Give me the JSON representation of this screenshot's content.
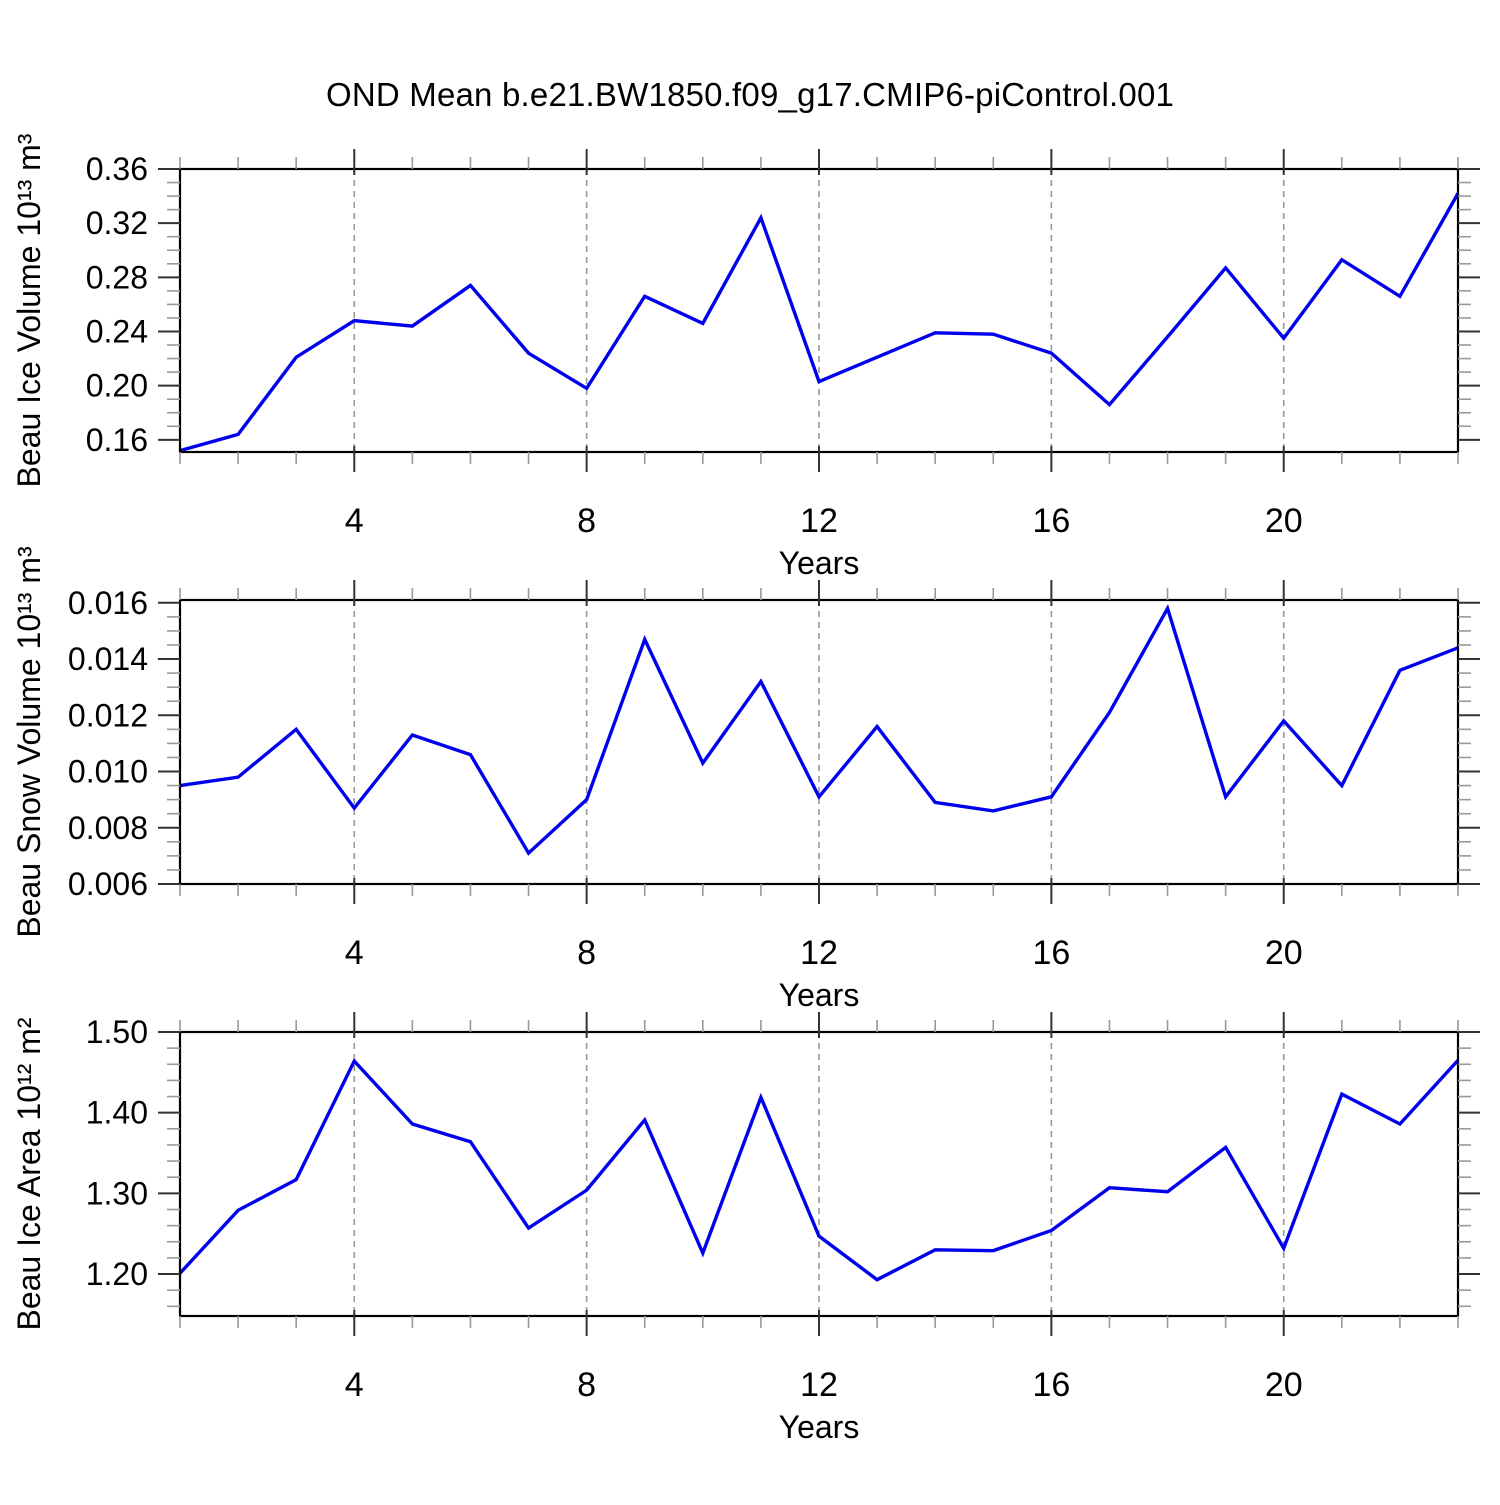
{
  "title": "OND Mean b.e21.BW1850.f09_g17.CMIP6-piControl.001",
  "style": {
    "line_color": "#0000ee",
    "axis_color": "#000000",
    "major_tick_color": "#333333",
    "minor_tick_color": "#999999",
    "grid_color": "#999999",
    "text_color": "#000000",
    "background": "#ffffff"
  },
  "chart_data": [
    {
      "type": "line",
      "name": "beau-ice-volume",
      "ylabel": "Beau Ice Volume 10¹³ m³",
      "xlabel": "Years",
      "x": [
        1,
        2,
        3,
        4,
        5,
        6,
        7,
        8,
        9,
        10,
        11,
        12,
        13,
        14,
        15,
        16,
        17,
        18,
        19,
        20,
        21,
        22,
        23
      ],
      "values": [
        0.152,
        0.164,
        0.221,
        0.248,
        0.244,
        0.274,
        0.224,
        0.198,
        0.266,
        0.246,
        0.324,
        0.203,
        0.221,
        0.239,
        0.238,
        0.224,
        0.186,
        0.236,
        0.287,
        0.235,
        0.293,
        0.266,
        0.342
      ],
      "xlim": [
        1,
        23
      ],
      "ylim": [
        0.151,
        0.36
      ],
      "xticks": [
        4,
        8,
        12,
        16,
        20
      ],
      "xtick_labels": [
        "4",
        "8",
        "12",
        "16",
        "20"
      ],
      "yticks": [
        0.16,
        0.2,
        0.24,
        0.28,
        0.32,
        0.36
      ],
      "ytick_labels": [
        "0.16",
        "0.20",
        "0.24",
        "0.28",
        "0.32",
        "0.36"
      ],
      "ytick_minor_step": 0.01,
      "xtick_minor_step": 1,
      "grid": "vertical-dashed",
      "legend": "none"
    },
    {
      "type": "line",
      "name": "beau-snow-volume",
      "ylabel": "Beau Snow Volume 10¹³ m³",
      "xlabel": "Years",
      "x": [
        1,
        2,
        3,
        4,
        5,
        6,
        7,
        8,
        9,
        10,
        11,
        12,
        13,
        14,
        15,
        16,
        17,
        18,
        19,
        20,
        21,
        22,
        23
      ],
      "values": [
        0.0095,
        0.0098,
        0.0115,
        0.0087,
        0.0113,
        0.0106,
        0.0071,
        0.009,
        0.0147,
        0.0103,
        0.0132,
        0.0091,
        0.0116,
        0.0089,
        0.0086,
        0.0091,
        0.0121,
        0.0158,
        0.0091,
        0.0118,
        0.0095,
        0.0136,
        0.0144
      ],
      "xlim": [
        1,
        23
      ],
      "ylim": [
        0.006,
        0.0161
      ],
      "xticks": [
        4,
        8,
        12,
        16,
        20
      ],
      "xtick_labels": [
        "4",
        "8",
        "12",
        "16",
        "20"
      ],
      "yticks": [
        0.006,
        0.008,
        0.01,
        0.012,
        0.014,
        0.016
      ],
      "ytick_labels": [
        "0.006",
        "0.008",
        "0.010",
        "0.012",
        "0.014",
        "0.016"
      ],
      "ytick_minor_step": 0.0005,
      "xtick_minor_step": 1,
      "grid": "vertical-dashed",
      "legend": "none"
    },
    {
      "type": "line",
      "name": "beau-ice-area",
      "ylabel": "Beau Ice Area 10¹² m²",
      "xlabel": "Years",
      "x": [
        1,
        2,
        3,
        4,
        5,
        6,
        7,
        8,
        9,
        10,
        11,
        12,
        13,
        14,
        15,
        16,
        17,
        18,
        19,
        20,
        21,
        22,
        23
      ],
      "values": [
        1.201,
        1.279,
        1.317,
        1.464,
        1.386,
        1.364,
        1.257,
        1.304,
        1.391,
        1.226,
        1.419,
        1.247,
        1.193,
        1.23,
        1.229,
        1.254,
        1.307,
        1.302,
        1.357,
        1.232,
        1.423,
        1.386,
        1.465
      ],
      "xlim": [
        1,
        23
      ],
      "ylim": [
        1.148,
        1.5
      ],
      "xticks": [
        4,
        8,
        12,
        16,
        20
      ],
      "xtick_labels": [
        "4",
        "8",
        "12",
        "16",
        "20"
      ],
      "yticks": [
        1.2,
        1.3,
        1.4,
        1.5
      ],
      "ytick_labels": [
        "1.20",
        "1.30",
        "1.40",
        "1.50"
      ],
      "ytick_minor_step": 0.02,
      "xtick_minor_step": 1,
      "grid": "vertical-dashed",
      "legend": "none"
    }
  ]
}
